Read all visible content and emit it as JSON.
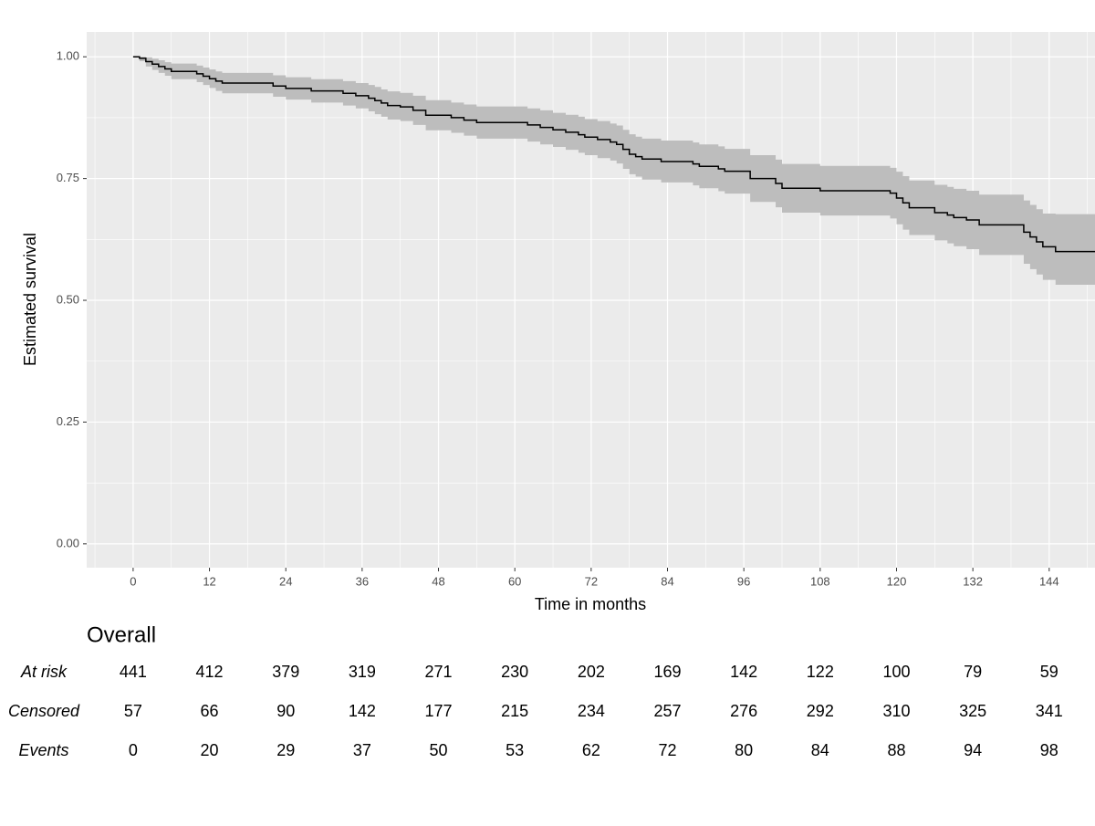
{
  "chart_data": {
    "type": "step",
    "y_label": "Estimated survival",
    "x_label": "Time in months",
    "color": "#000000",
    "band_color": "#bdbdbd",
    "panel_color": "#ebebeb",
    "grid": true,
    "xlim": [
      -7.3,
      151.2
    ],
    "ylim": [
      -0.049,
      1.051
    ],
    "xticks": [
      0,
      12,
      24,
      36,
      48,
      60,
      72,
      84,
      96,
      108,
      120,
      132,
      144
    ],
    "xminor": [
      -6,
      6,
      18,
      30,
      42,
      54,
      66,
      78,
      90,
      102,
      114,
      126,
      138,
      150
    ],
    "yticks": [
      {
        "value": 0,
        "label": "0.00"
      },
      {
        "value": 0.25,
        "label": "0.25"
      },
      {
        "value": 0.5,
        "label": "0.50"
      },
      {
        "value": 0.75,
        "label": "0.75"
      },
      {
        "value": 1,
        "label": "1.00"
      }
    ],
    "yminor": [
      0.125,
      0.375,
      0.625,
      0.875
    ],
    "x": [
      0,
      1,
      2,
      3,
      4,
      5,
      6,
      10,
      11,
      12,
      13,
      14,
      22,
      24,
      28,
      33,
      35,
      37,
      38,
      39,
      40,
      42,
      44,
      46,
      50,
      52,
      54,
      62,
      64,
      66,
      68,
      70,
      71,
      73,
      75,
      76,
      77,
      78,
      79,
      80,
      83,
      88,
      89,
      92,
      93,
      97,
      101,
      102,
      108,
      119,
      120,
      121,
      122,
      126,
      128,
      129,
      131,
      133,
      140,
      141,
      142,
      143,
      145,
      151.2
    ],
    "values": [
      1,
      0.997,
      0.99,
      0.985,
      0.98,
      0.975,
      0.97,
      0.965,
      0.96,
      0.955,
      0.95,
      0.946,
      0.94,
      0.935,
      0.93,
      0.925,
      0.92,
      0.915,
      0.91,
      0.905,
      0.9,
      0.897,
      0.89,
      0.88,
      0.875,
      0.87,
      0.865,
      0.86,
      0.855,
      0.85,
      0.845,
      0.84,
      0.835,
      0.83,
      0.825,
      0.82,
      0.81,
      0.8,
      0.795,
      0.79,
      0.785,
      0.78,
      0.775,
      0.77,
      0.765,
      0.75,
      0.74,
      0.73,
      0.725,
      0.72,
      0.71,
      0.7,
      0.69,
      0.68,
      0.675,
      0.67,
      0.665,
      0.655,
      0.64,
      0.63,
      0.62,
      0.61,
      0.6,
      0.6
    ],
    "lower": [
      1,
      0.991,
      0.98,
      0.973,
      0.967,
      0.961,
      0.954,
      0.948,
      0.942,
      0.936,
      0.93,
      0.925,
      0.918,
      0.912,
      0.906,
      0.9,
      0.894,
      0.888,
      0.882,
      0.877,
      0.871,
      0.868,
      0.86,
      0.849,
      0.844,
      0.838,
      0.832,
      0.826,
      0.82,
      0.815,
      0.809,
      0.803,
      0.798,
      0.792,
      0.787,
      0.781,
      0.77,
      0.759,
      0.754,
      0.748,
      0.742,
      0.736,
      0.73,
      0.724,
      0.719,
      0.702,
      0.691,
      0.68,
      0.674,
      0.668,
      0.656,
      0.645,
      0.634,
      0.623,
      0.617,
      0.611,
      0.605,
      0.593,
      0.575,
      0.564,
      0.553,
      0.542,
      0.532,
      0.532
    ],
    "upper": [
      1,
      1,
      0.999,
      0.996,
      0.993,
      0.989,
      0.986,
      0.982,
      0.978,
      0.974,
      0.97,
      0.967,
      0.962,
      0.958,
      0.954,
      0.95,
      0.946,
      0.942,
      0.938,
      0.933,
      0.929,
      0.926,
      0.92,
      0.911,
      0.906,
      0.902,
      0.898,
      0.894,
      0.89,
      0.885,
      0.881,
      0.877,
      0.872,
      0.868,
      0.863,
      0.859,
      0.85,
      0.841,
      0.836,
      0.832,
      0.828,
      0.824,
      0.82,
      0.816,
      0.811,
      0.798,
      0.789,
      0.78,
      0.776,
      0.772,
      0.764,
      0.755,
      0.746,
      0.737,
      0.733,
      0.729,
      0.725,
      0.717,
      0.705,
      0.696,
      0.687,
      0.678,
      0.677,
      0.677
    ],
    "risk_table": {
      "title": "Overall",
      "rows": [
        {
          "label": "At risk",
          "values": [
            441,
            412,
            379,
            319,
            271,
            230,
            202,
            169,
            142,
            122,
            100,
            79,
            59
          ]
        },
        {
          "label": "Censored",
          "values": [
            57,
            66,
            90,
            142,
            177,
            215,
            234,
            257,
            276,
            292,
            310,
            325,
            341
          ]
        },
        {
          "label": "Events",
          "values": [
            0,
            20,
            29,
            37,
            50,
            53,
            62,
            72,
            80,
            84,
            88,
            94,
            98
          ]
        }
      ]
    }
  }
}
